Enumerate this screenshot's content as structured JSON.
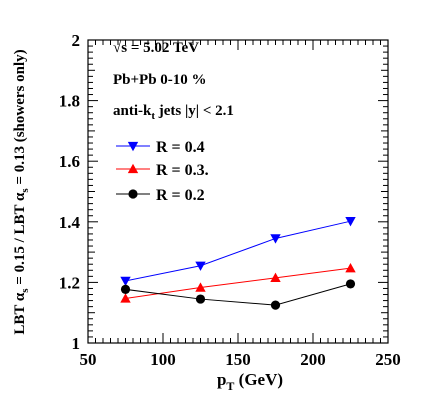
{
  "chart_data": {
    "type": "line",
    "xlabel": "p",
    "xlabel_sub": "T",
    "xlabel_unit": "(GeV)",
    "ylabel_parts": [
      "LBT  ",
      "α",
      "s",
      " = 0.15 / LBT  ",
      "α",
      "s",
      " = 0.13 (showers only)"
    ],
    "xlim": [
      50,
      250
    ],
    "ylim": [
      1,
      2
    ],
    "x_ticks": [
      50,
      100,
      150,
      200,
      250
    ],
    "y_ticks": [
      1,
      1.2,
      1.4,
      1.6,
      1.8,
      2
    ],
    "x_tick_labels": [
      "50",
      "100",
      "150",
      "200",
      "250"
    ],
    "y_tick_labels": [
      "1",
      "1.2",
      "1.4",
      "1.6",
      "1.8",
      "2"
    ],
    "annotations": [
      {
        "parts": [
          [
            "√s = 5.02 TeV",
            "normal"
          ]
        ]
      },
      {
        "parts": [
          [
            "Pb+Pb 0-10 %",
            "normal"
          ]
        ]
      },
      {
        "parts": [
          [
            "anti-k",
            "normal"
          ],
          [
            "t",
            "sub"
          ],
          [
            " jets |y| < 2.1",
            "normal"
          ]
        ]
      }
    ],
    "legend_position": "top-left",
    "series": [
      {
        "name": "R = 0.4",
        "color": "#0000ff",
        "marker": "triangle-down",
        "x": [
          75,
          125,
          175,
          225
        ],
        "values": [
          1.205,
          1.255,
          1.345,
          1.402
        ]
      },
      {
        "name": "R = 0.3.",
        "color": "#ff0000",
        "marker": "triangle-up",
        "x": [
          75,
          125,
          175,
          225
        ],
        "values": [
          1.147,
          1.183,
          1.215,
          1.247
        ]
      },
      {
        "name": "R = 0.2",
        "color": "#000000",
        "marker": "circle",
        "x": [
          75,
          125,
          175,
          225
        ],
        "values": [
          1.177,
          1.145,
          1.125,
          1.195
        ]
      }
    ]
  }
}
